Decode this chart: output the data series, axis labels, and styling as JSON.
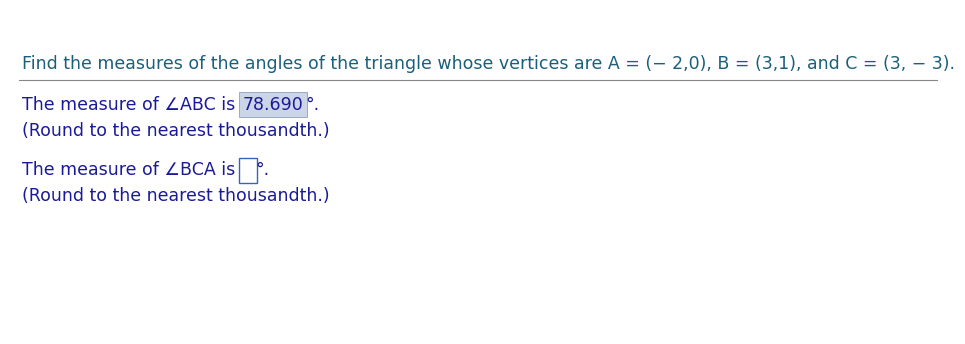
{
  "title_line": "Find the measures of the angles of the triangle whose vertices are A = (− 2,0), B = (3,1), and C = (3, − 3).",
  "title_color": "#1c5f7a",
  "title_fontsize": 12.5,
  "teal_bar_color": "#1c8fa0",
  "separator_color": "#888888",
  "line1_prefix": "The measure of ∠ABC is ",
  "line1_value": "78.690",
  "line1_value_bg": "#ccd5e8",
  "line1_value_border": "#9aaac8",
  "line1_suffix": "°.",
  "round_note": "(Round to the nearest thousandth.)",
  "line2_prefix": "The measure of ∠BCA is ",
  "line2_box_border": "#3366bb",
  "line2_suffix": "°.",
  "text_color": "#1a1a99",
  "text_fontsize": 12.5,
  "bg_color": "#ffffff"
}
